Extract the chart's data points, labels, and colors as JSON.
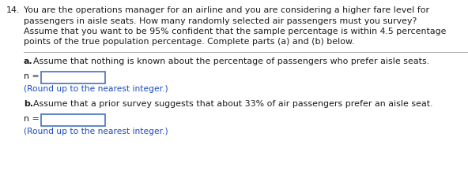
{
  "question_number": "14.",
  "q_line1": "You are the operations manager for an airline and you are considering a higher fare level for",
  "q_line2": "passengers in aisle seats. How many randomly selected air passengers must you survey?",
  "q_line3": "Assume that you want to be 95% confident that the sample percentage is within 4.5 percentage",
  "q_line4": "points of the true population percentage. Complete parts (a) and (b) below.",
  "part_a_label": "a.",
  "part_a_text": "Assume that nothing is known about the percentage of passengers who prefer aisle seats.",
  "n_label": "n =",
  "round_text": "(Round up to the nearest integer.)",
  "part_b_label": "b.",
  "part_b_text": "Assume that a prior survey suggests that about 33% of air passengers prefer an aisle seat.",
  "bg_color": "#ffffff",
  "text_color_dark": "#1c1c1c",
  "text_color_blue": "#1a4bbf",
  "box_edge_color": "#4472c4",
  "divider_color": "#aaaaaa",
  "font_size_q": 7.9,
  "font_size_parts": 7.9,
  "font_size_round": 7.7
}
